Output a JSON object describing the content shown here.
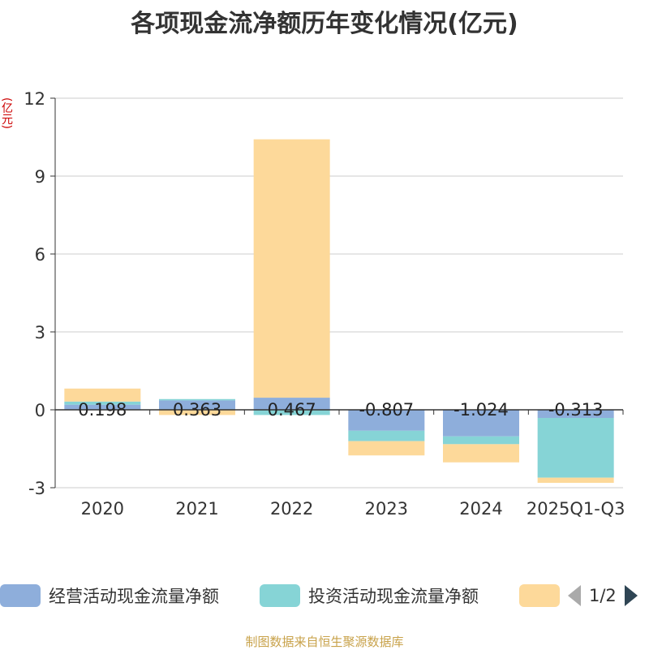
{
  "chart_data": {
    "type": "bar",
    "stacked": true,
    "title": "各项现金流净额历年变化情况(亿元)",
    "ylabel": "(亿元)",
    "categories": [
      "2020",
      "2021",
      "2022",
      "2023",
      "2024",
      "2025Q1-Q3"
    ],
    "ylim": [
      -3,
      12
    ],
    "yticks": [
      -3,
      0,
      3,
      6,
      9,
      12
    ],
    "series": [
      {
        "name": "经营活动现金流量净额",
        "color": "#8eaedb",
        "values": [
          0.198,
          0.363,
          0.467,
          -0.807,
          -1.024,
          -0.313
        ],
        "labels": [
          "0.198",
          "0.363",
          "0.467",
          "-0.807",
          "-1.024",
          "-0.313"
        ]
      },
      {
        "name": "投资活动现金流量净额",
        "color": "#86d4d6",
        "values": [
          0.12,
          0.05,
          -0.2,
          -0.4,
          -0.3,
          -2.3
        ]
      },
      {
        "name": "",
        "color": "#fdd99a",
        "values": [
          0.5,
          -0.2,
          9.95,
          -0.55,
          -0.7,
          -0.2
        ]
      }
    ],
    "grid": true
  },
  "legend": {
    "items": [
      {
        "label": "经营活动现金流量净额",
        "color": "#8eaedb"
      },
      {
        "label": "投资活动现金流量净额",
        "color": "#86d4d6"
      },
      {
        "label": "",
        "color": "#fdd99a"
      }
    ],
    "page": "1/2"
  },
  "source": "制图数据来自恒生聚源数据库"
}
